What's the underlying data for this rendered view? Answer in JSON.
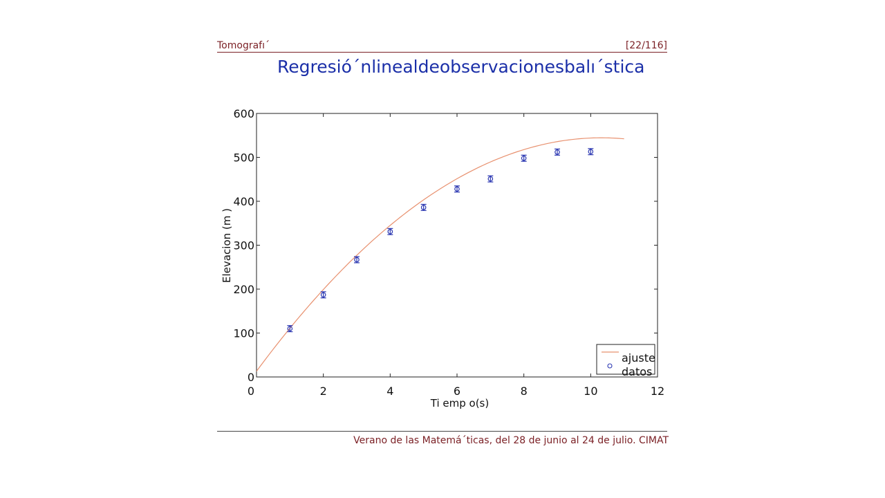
{
  "header": {
    "left": "Tomografı´",
    "right": "[22/116]"
  },
  "title": "Regresió´nlinealdeobservacionesbalı´stica",
  "footer": "Verano de las Matemá´ticas, del 28 de junio al 24 de julio. CIMAT",
  "chart_data": {
    "type": "scatter",
    "title": "",
    "xlabel": "Ti emp o(s)",
    "ylabel": "Elevacion (m )",
    "xlim": [
      0,
      12
    ],
    "ylim": [
      0,
      600
    ],
    "x_ticks": [
      0,
      2,
      4,
      6,
      8,
      10,
      12
    ],
    "y_ticks": [
      0,
      100,
      200,
      300,
      400,
      500,
      600
    ],
    "grid": false,
    "legend_position": "bottom-right",
    "series": [
      {
        "name": "datos",
        "kind": "points-with-errorbars",
        "color": "#2a36b1",
        "x": [
          1,
          2,
          3,
          4,
          5,
          6,
          7,
          8,
          9,
          10
        ],
        "y": [
          110,
          187,
          267,
          331,
          386,
          428,
          451,
          498,
          512,
          513
        ],
        "error": [
          7,
          7,
          7,
          7,
          7,
          7,
          7,
          7,
          7,
          7
        ]
      },
      {
        "name": "ajuste",
        "kind": "fit-curve",
        "color": "#e8906e",
        "x_range": [
          0,
          11
        ],
        "coefficients": {
          "a": -4.99,
          "b": 103,
          "c": 13
        }
      }
    ]
  }
}
